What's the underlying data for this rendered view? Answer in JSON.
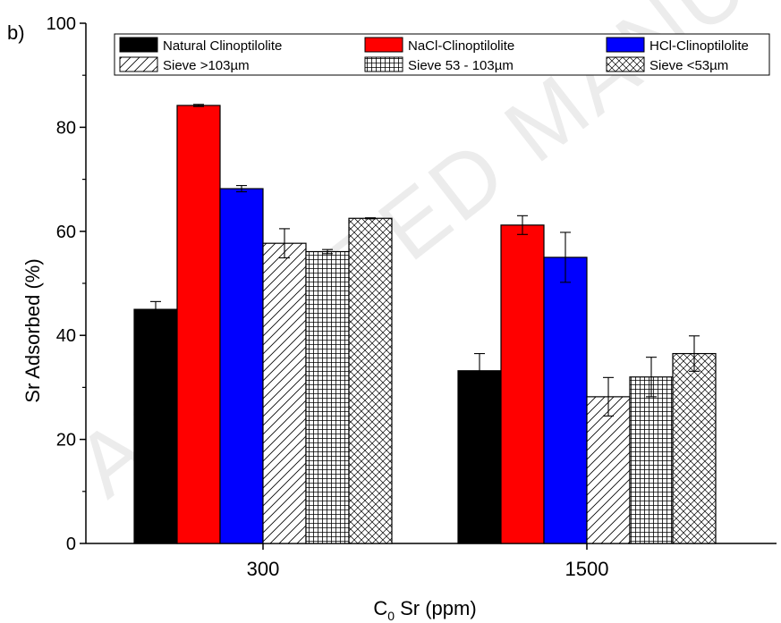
{
  "panel_label": "b)",
  "colors": {
    "natural": "#000000",
    "nacl": "#ff0000",
    "hcl": "#0000ff",
    "pattern_bg": "#ffffff",
    "axis": "#000000",
    "watermark": "#e6e6e6"
  },
  "watermark_text": "ACCEPTED MANUSCRIPT",
  "chart_data": {
    "type": "bar",
    "title": "",
    "xlabel_main": "C",
    "xlabel_sub": "0",
    "xlabel_rest": " Sr (ppm)",
    "ylabel": "Sr Adsorbed (%)",
    "ylim": [
      0,
      100
    ],
    "yticks": [
      0,
      20,
      40,
      60,
      80,
      100
    ],
    "categories": [
      "300",
      "1500"
    ],
    "legend_position": "top",
    "series": [
      {
        "name": "Natural Clinoptilolite",
        "fill": "solid",
        "values": [
          45,
          33.2
        ],
        "errors": [
          1.5,
          3.3
        ]
      },
      {
        "name": "NaCl-Clinoptilolite",
        "fill": "solid",
        "values": [
          84.2,
          61.2
        ],
        "errors": [
          0.2,
          1.8
        ]
      },
      {
        "name": "HCl-Clinoptilolite",
        "fill": "solid",
        "values": [
          68.2,
          55
        ],
        "errors": [
          0.6,
          4.8
        ]
      },
      {
        "name": "Sieve >103µm",
        "fill": "diagonal",
        "values": [
          57.7,
          28.2
        ],
        "errors": [
          2.8,
          3.7
        ]
      },
      {
        "name": "Sieve 53 - 103µm",
        "fill": "grid",
        "values": [
          56.1,
          32
        ],
        "errors": [
          0.4,
          3.8
        ]
      },
      {
        "name": "Sieve <53µm",
        "fill": "crosshatch",
        "values": [
          62.5,
          36.5
        ],
        "errors": [
          0.1,
          3.4
        ]
      }
    ]
  }
}
